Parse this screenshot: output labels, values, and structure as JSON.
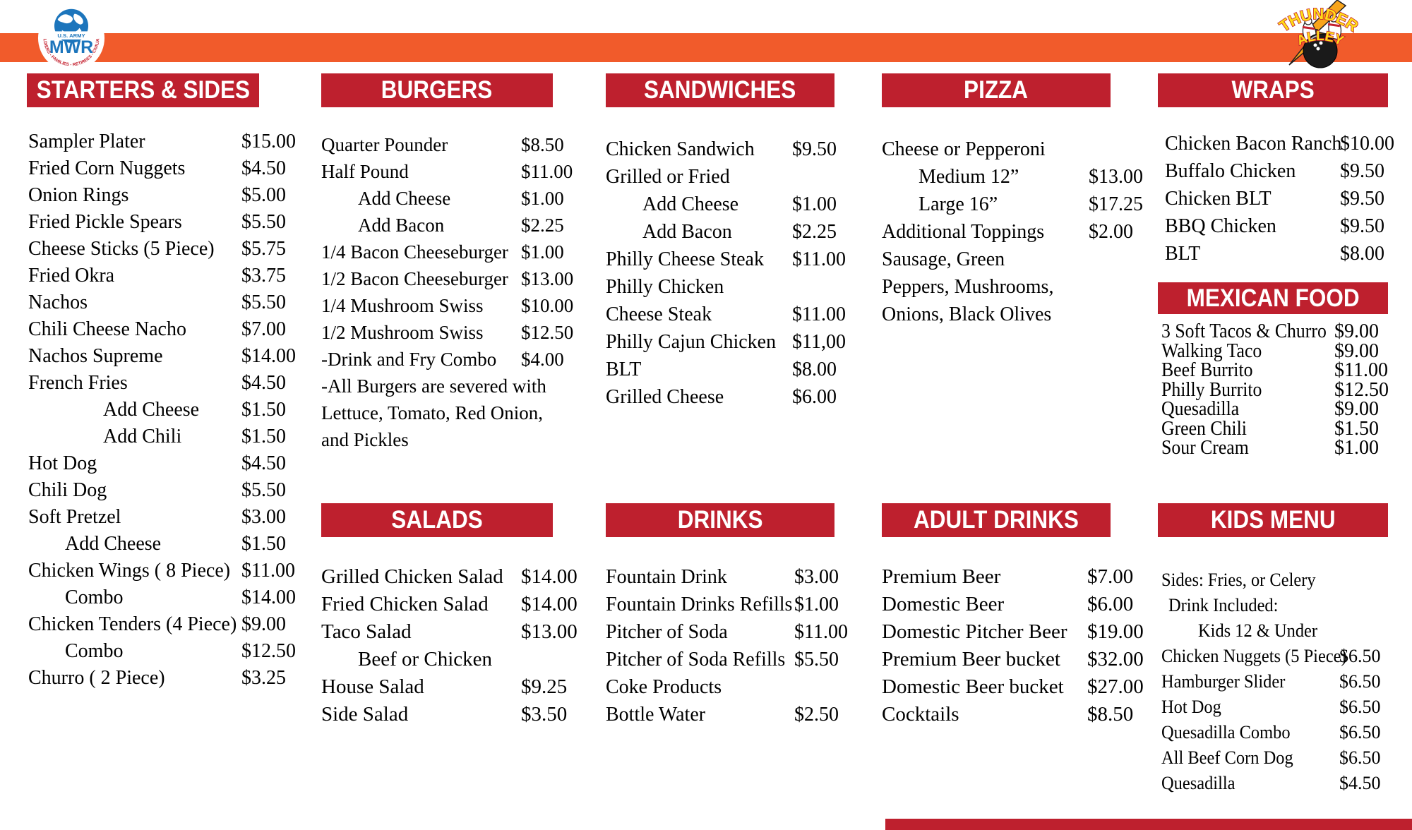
{
  "colors": {
    "header_red": "#BE202E",
    "band_orange": "#F15B2B",
    "mwr_blue": "#1C75BC",
    "mwr_ring_red": "#C4202E",
    "thunder_yellow": "#FFDE17"
  },
  "logos": {
    "mwr": {
      "org": "U.S. ARMY",
      "name": "MWR",
      "ring_text": "SOLDIERS - FAMILIES - RETIREES - CIVILIANS"
    },
    "thunder_alley": {
      "line1": "THUNDER",
      "line2": "ALLEY"
    }
  },
  "sections": {
    "starters": {
      "title": "STARTERS & SIDES",
      "items": [
        {
          "name": "Sampler Plater",
          "price": "$15.00"
        },
        {
          "name": "Fried Corn Nuggets",
          "price": "$4.50"
        },
        {
          "name": "Onion Rings",
          "price": "$5.00"
        },
        {
          "name": "Fried Pickle Spears",
          "price": "$5.50"
        },
        {
          "name": "Cheese Sticks (5 Piece)",
          "price": "$5.75"
        },
        {
          "name": "Fried Okra",
          "price": "$3.75"
        },
        {
          "name": "Nachos",
          "price": "$5.50"
        },
        {
          "name": "Chili Cheese Nacho",
          "price": "$7.00"
        },
        {
          "name": "Nachos Supreme",
          "price": "$14.00"
        },
        {
          "name": "French Fries",
          "price": "$4.50"
        },
        {
          "name": "Add Cheese",
          "price": "$1.50",
          "indent": 3
        },
        {
          "name": "Add Chili",
          "price": "$1.50",
          "indent": 3
        },
        {
          "name": "Hot Dog",
          "price": "$4.50"
        },
        {
          "name": "Chili Dog",
          "price": "$5.50"
        },
        {
          "name": "Soft Pretzel",
          "price": "$3.00"
        },
        {
          "name": "Add Cheese",
          "price": "$1.50",
          "indent": 2
        },
        {
          "name": "Chicken Wings ( 8 Piece)",
          "price": "$11.00"
        },
        {
          "name": "Combo",
          "price": "$14.00",
          "indent": 2
        },
        {
          "name": "Chicken Tenders (4 Piece)",
          "price": "$9.00"
        },
        {
          "name": "Combo",
          "price": "$12.50",
          "indent": 2
        },
        {
          "name": "Churro ( 2 Piece)",
          "price": "$3.25"
        }
      ]
    },
    "burgers": {
      "title": "BURGERS",
      "items": [
        {
          "name": "Quarter Pounder",
          "price": "$8.50"
        },
        {
          "name": "Half Pound",
          "price": "$11.00"
        },
        {
          "name": "Add Cheese",
          "price": "$1.00",
          "indent": 2
        },
        {
          "name": "Add Bacon",
          "price": "$2.25",
          "indent": 2
        },
        {
          "name": "1/4 Bacon Cheeseburger",
          "price": "$1.00"
        },
        {
          "name": "1/2 Bacon Cheeseburger",
          "price": "$13.00"
        },
        {
          "name": "1/4 Mushroom Swiss",
          "price": "$10.00"
        },
        {
          "name": "1/2 Mushroom Swiss",
          "price": "$12.50"
        },
        {
          "name": "-Drink and Fry Combo",
          "price": "$4.00"
        },
        {
          "name": "-All Burgers are severed with",
          "price": ""
        },
        {
          "name": "Lettuce, Tomato, Red Onion,",
          "price": ""
        },
        {
          "name": "and Pickles",
          "price": ""
        }
      ]
    },
    "sandwiches": {
      "title": "SANDWICHES",
      "items": [
        {
          "name": "Chicken Sandwich",
          "price": "$9.50"
        },
        {
          "name": "Grilled or Fried",
          "price": ""
        },
        {
          "name": "Add Cheese",
          "price": "$1.00",
          "indent": 2
        },
        {
          "name": "Add Bacon",
          "price": "$2.25",
          "indent": 2
        },
        {
          "name": "Philly Cheese Steak",
          "price": "$11.00"
        },
        {
          "name": "Philly Chicken",
          "price": ""
        },
        {
          "name": "Cheese Steak",
          "price": "$11.00"
        },
        {
          "name": "Philly Cajun Chicken",
          "price": "$11,00"
        },
        {
          "name": "BLT",
          "price": "$8.00"
        },
        {
          "name": "Grilled Cheese",
          "price": "$6.00"
        }
      ]
    },
    "pizza": {
      "title": "PIZZA",
      "items": [
        {
          "name": "Cheese or Pepperoni",
          "price": ""
        },
        {
          "name": "Medium 12”",
          "price": "$13.00",
          "indent": 2
        },
        {
          "name": "Large 16”",
          "price": "$17.25",
          "indent": 2
        },
        {
          "name": "Additional Toppings",
          "price": "$2.00"
        },
        {
          "name": "Sausage, Green",
          "price": ""
        },
        {
          "name": "Peppers, Mushrooms,",
          "price": ""
        },
        {
          "name": "Onions, Black Olives",
          "price": ""
        }
      ]
    },
    "wraps": {
      "title": "WRAPS",
      "items": [
        {
          "name": "Chicken Bacon Ranch",
          "price": "$10.00"
        },
        {
          "name": "Buffalo Chicken",
          "price": "$9.50"
        },
        {
          "name": "Chicken BLT",
          "price": "$9.50"
        },
        {
          "name": "BBQ Chicken",
          "price": "$9.50"
        },
        {
          "name": "BLT",
          "price": "$8.00"
        }
      ]
    },
    "mexican": {
      "title": "MEXICAN FOOD",
      "items": [
        {
          "name": "3 Soft Tacos & Churro",
          "price": "$9.00"
        },
        {
          "name": "Walking Taco",
          "price": "$9.00"
        },
        {
          "name": "Beef Burrito",
          "price": "$11.00"
        },
        {
          "name": "Philly Burrito",
          "price": "$12.50"
        },
        {
          "name": "Quesadilla",
          "price": "$9.00"
        },
        {
          "name": "Green Chili",
          "price": "$1.50"
        },
        {
          "name": "Sour Cream",
          "price": "$1.00"
        }
      ]
    },
    "salads": {
      "title": "SALADS",
      "items": [
        {
          "name": "Grilled Chicken Salad",
          "price": "$14.00"
        },
        {
          "name": "Fried Chicken Salad",
          "price": "$14.00"
        },
        {
          "name": "Taco Salad",
          "price": "$13.00"
        },
        {
          "name": "Beef or Chicken",
          "price": "",
          "indent": 2
        },
        {
          "name": "House Salad",
          "price": "$9.25"
        },
        {
          "name": "Side Salad",
          "price": "$3.50"
        }
      ]
    },
    "drinks": {
      "title": "DRINKS",
      "items": [
        {
          "name": "Fountain Drink",
          "price": "$3.00"
        },
        {
          "name": "Fountain Drinks Refills",
          "price": "$1.00"
        },
        {
          "name": "Pitcher of Soda",
          "price": "$11.00"
        },
        {
          "name": "Pitcher of Soda Refills",
          "price": "$5.50"
        },
        {
          "name": "Coke Products",
          "price": ""
        },
        {
          "name": "Bottle Water",
          "price": "$2.50"
        }
      ]
    },
    "adult": {
      "title": "ADULT DRINKS",
      "items": [
        {
          "name": "Premium Beer",
          "price": "$7.00"
        },
        {
          "name": "Domestic Beer",
          "price": "$6.00"
        },
        {
          "name": "Domestic Pitcher Beer",
          "price": "$19.00"
        },
        {
          "name": "Premium Beer bucket",
          "price": "$32.00"
        },
        {
          "name": "Domestic Beer bucket",
          "price": "$27.00"
        },
        {
          "name": "Cocktails",
          "price": "$8.50"
        }
      ]
    },
    "kids": {
      "title": "KIDS MENU",
      "items": [
        {
          "name": "Sides: Fries, or Celery",
          "price": ""
        },
        {
          "name": "Drink Included:",
          "price": "",
          "indent": 1
        },
        {
          "name": "Kids 12 & Under",
          "price": "",
          "indent": 2
        },
        {
          "name": "Chicken Nuggets (5 Piece)",
          "price": "$6.50"
        },
        {
          "name": "Hamburger Slider",
          "price": "$6.50"
        },
        {
          "name": "Hot Dog",
          "price": "$6.50"
        },
        {
          "name": "Quesadilla Combo",
          "price": "$6.50"
        },
        {
          "name": "All Beef Corn Dog",
          "price": "$6.50"
        },
        {
          "name": "Quesadilla",
          "price": "$4.50"
        }
      ]
    }
  }
}
